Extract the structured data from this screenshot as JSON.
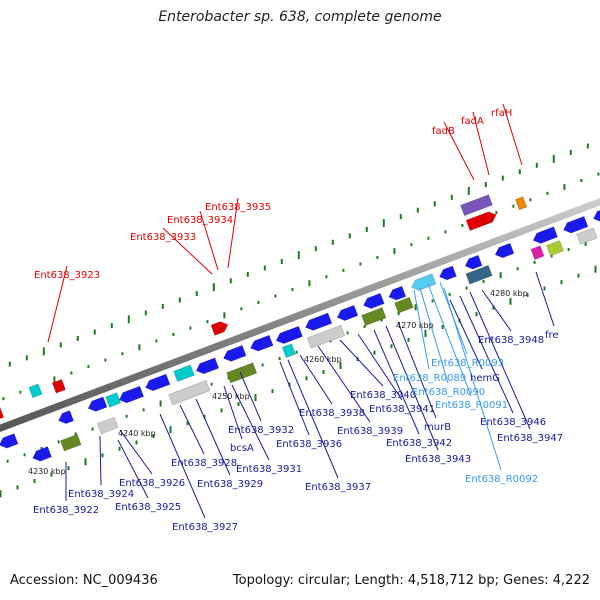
{
  "title": "Enterobacter sp. 638, complete genome",
  "footer": {
    "accession": "Accession: NC_009436",
    "topology": "Topology: circular; Length: 4,518,712 bp; Genes: 4,222"
  },
  "colors": {
    "cds": "#1a1aee",
    "cds_highlight": "#e00000",
    "rrna_label": "#3399ee",
    "cds_label": "#1a1a99",
    "ticks": "#1e7a1e",
    "backbone": "#888888"
  },
  "scale_labels": [
    "4230 kbp",
    "4240 kbp",
    "4250 kbp",
    "4260 kbp",
    "4270 kbp",
    "4280 kbp"
  ],
  "highlighted_genes": [
    "Ent638_3923",
    "Ent638_3933",
    "Ent638_3934",
    "Ent638_3935",
    "fadB",
    "fadA",
    "rfaH"
  ],
  "genes": [
    "Ent638_3922",
    "Ent638_3924",
    "Ent638_3925",
    "Ent638_3926",
    "Ent638_3927",
    "Ent638_3928",
    "Ent638_3929",
    "bcsA",
    "Ent638_3931",
    "Ent638_3932",
    "Ent638_3936",
    "Ent638_3937",
    "Ent638_3938",
    "Ent638_3939",
    "Ent638_3940",
    "Ent638_3941",
    "Ent638_3942",
    "Ent638_3943",
    "murB",
    "Ent638_R0089",
    "Ent638_R0090",
    "Ent638_R0091",
    "Ent638_R0093",
    "hemG",
    "Ent638_3946",
    "Ent638_3947",
    "Ent638_3948",
    "Ent638_R0092",
    "fre"
  ]
}
